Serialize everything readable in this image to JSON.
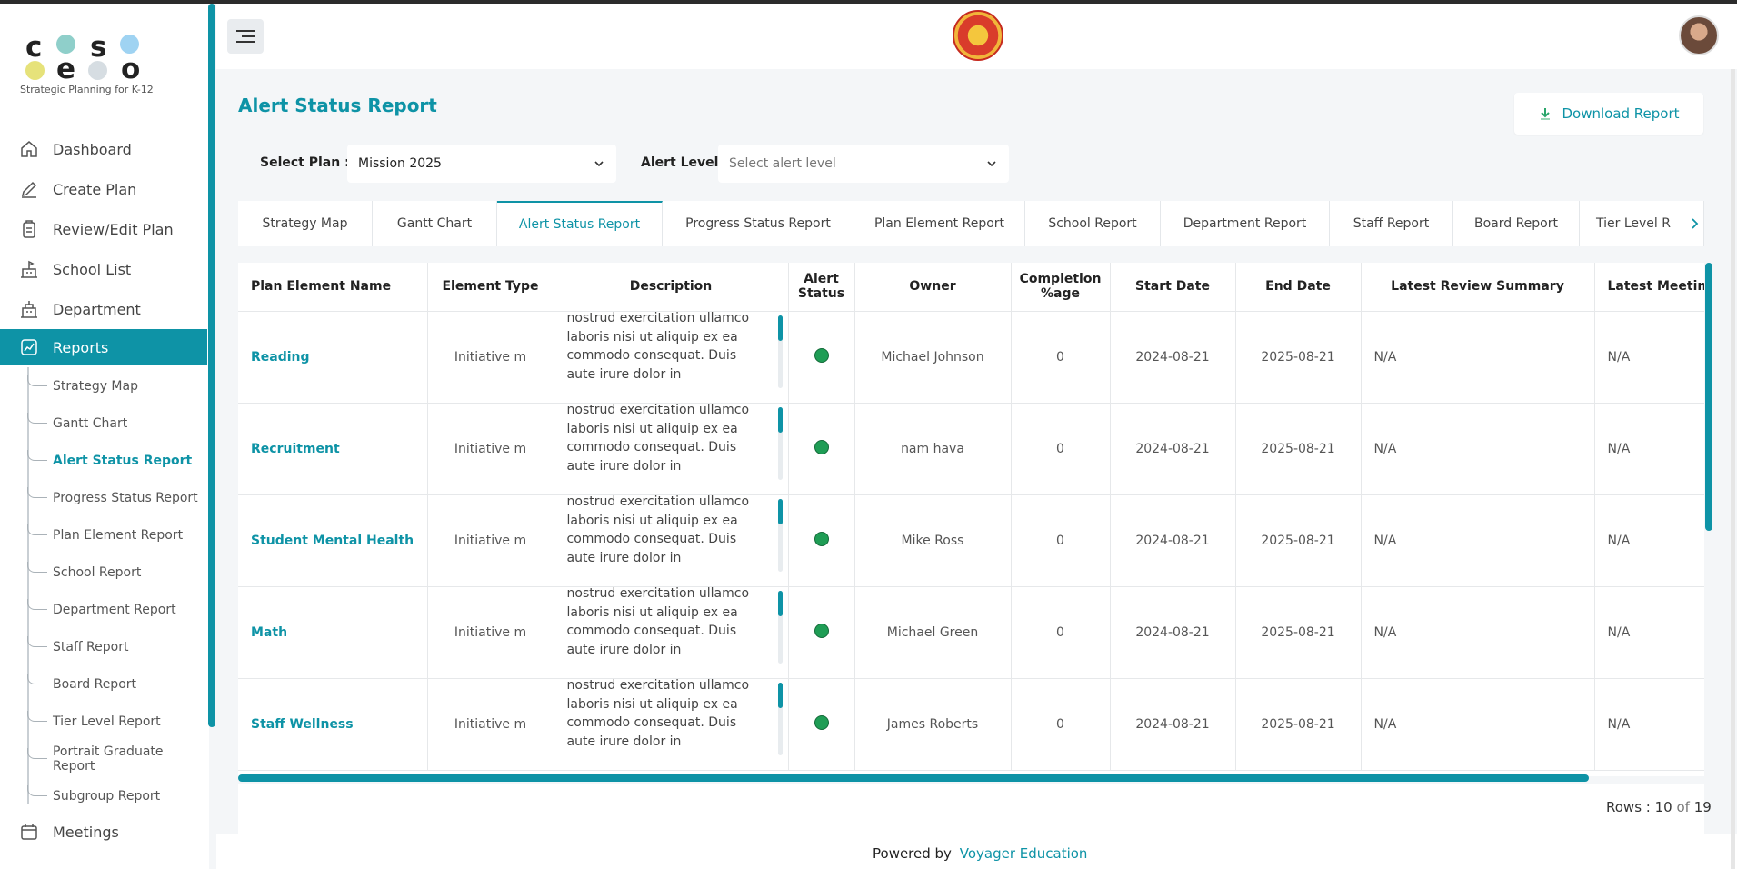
{
  "brand": {
    "letters": [
      "c",
      "s",
      "e",
      "o"
    ],
    "tagline": "Strategic Planning for K-12",
    "colors": {
      "teal_dot": "#8fcfca",
      "blue_dot": "#9fd3f2",
      "yellow_dot": "#e6e27a",
      "grey_dot": "#d6dde2"
    }
  },
  "sidebar": {
    "items": [
      {
        "label": "Dashboard",
        "icon": "home-icon"
      },
      {
        "label": "Create Plan",
        "icon": "pencil-icon"
      },
      {
        "label": "Review/Edit Plan",
        "icon": "clipboard-icon"
      },
      {
        "label": "School List",
        "icon": "school-icon"
      },
      {
        "label": "Department",
        "icon": "building-icon"
      },
      {
        "label": "Reports",
        "icon": "chart-icon",
        "active": true
      },
      {
        "label": "Meetings",
        "icon": "calendar-icon"
      }
    ],
    "report_subitems": [
      "Strategy Map",
      "Gantt Chart",
      "Alert Status Report",
      "Progress Status Report",
      "Plan Element Report",
      "School Report",
      "Department Report",
      "Staff Report",
      "Board Report",
      "Tier Level Report",
      "Portrait Graduate Report",
      "Subgroup Report"
    ],
    "active_subitem": "Alert Status Report"
  },
  "page": {
    "title": "Alert Status Report",
    "download_label": "Download Report"
  },
  "filters": {
    "plan_label": "Select Plan :",
    "plan_value": "Mission 2025",
    "alert_label": "Alert Level :",
    "alert_placeholder": "Select alert level"
  },
  "tabs": [
    "Strategy Map",
    "Gantt Chart",
    "Alert Status Report",
    "Progress Status Report",
    "Plan Element Report",
    "School Report",
    "Department Report",
    "Staff Report",
    "Board Report",
    "Tier Level R"
  ],
  "active_tab": "Alert Status Report",
  "table": {
    "headers": [
      "Plan Element Name",
      "Element Type",
      "Description",
      "Alert Status",
      "Owner",
      "Completion %age",
      "Start Date",
      "End Date",
      "Latest Review Summary",
      "Latest Meeting"
    ],
    "description_text": "nostrud exercitation ullamco laboris nisi ut aliquip ex ea commodo consequat. Duis aute irure dolor in reprehenderit in voluptate velit esse cillum dolore",
    "rows": [
      {
        "name": "Reading",
        "type": "Initiative m",
        "status_color": "#1f9d55",
        "owner": "Michael Johnson",
        "completion": "0",
        "start": "2024-08-21",
        "end": "2025-08-21",
        "review": "N/A",
        "meeting": "N/A"
      },
      {
        "name": "Recruitment",
        "type": "Initiative m",
        "status_color": "#1f9d55",
        "owner": "nam hava",
        "completion": "0",
        "start": "2024-08-21",
        "end": "2025-08-21",
        "review": "N/A",
        "meeting": "N/A"
      },
      {
        "name": "Student Mental Health",
        "type": "Initiative m",
        "status_color": "#1f9d55",
        "owner": "Mike Ross",
        "completion": "0",
        "start": "2024-08-21",
        "end": "2025-08-21",
        "review": "N/A",
        "meeting": "N/A"
      },
      {
        "name": "Math",
        "type": "Initiative m",
        "status_color": "#1f9d55",
        "owner": "Michael Green",
        "completion": "0",
        "start": "2024-08-21",
        "end": "2025-08-21",
        "review": "N/A",
        "meeting": "N/A"
      },
      {
        "name": "Staff Wellness",
        "type": "Initiative m",
        "status_color": "#1f9d55",
        "owner": "James Roberts",
        "completion": "0",
        "start": "2024-08-21",
        "end": "2025-08-21",
        "review": "N/A",
        "meeting": "N/A"
      }
    ]
  },
  "pagination": {
    "rows_label": "Rows :",
    "shown": "10",
    "of_label": "of",
    "total": "19"
  },
  "footer": {
    "powered_by": "Powered by",
    "brand": "Voyager Education"
  },
  "colors": {
    "accent": "#0e93a6",
    "status_green": "#1f9d55"
  }
}
